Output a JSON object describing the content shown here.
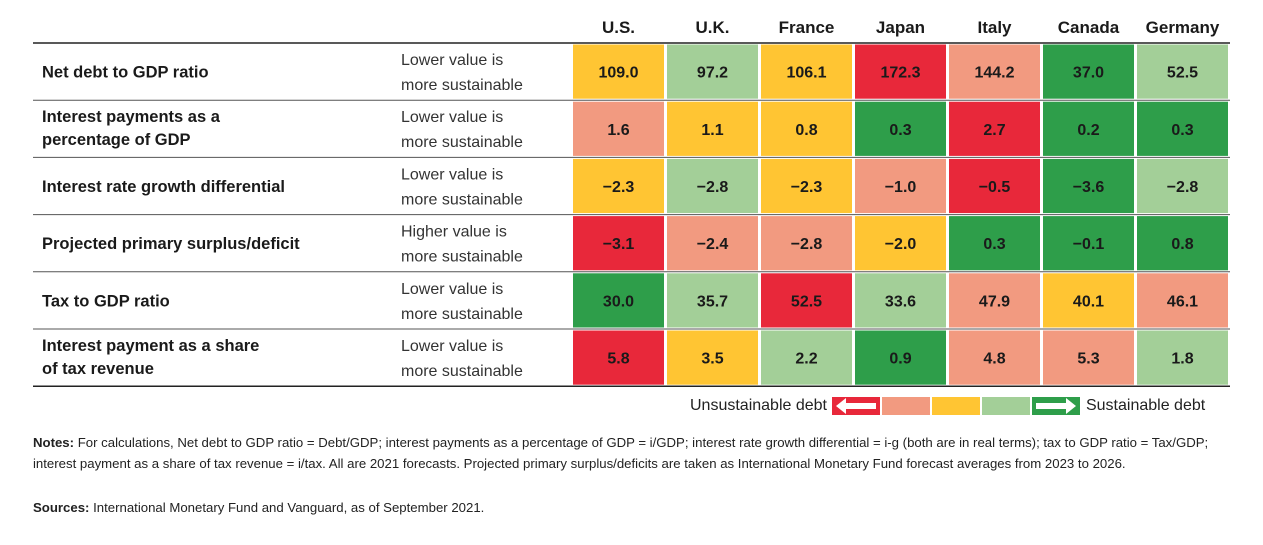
{
  "chart_data": {
    "type": "heatmap",
    "columns": [
      "U.S.",
      "U.K.",
      "France",
      "Japan",
      "Italy",
      "Canada",
      "Germany"
    ],
    "rows": [
      {
        "metric": "Net debt to GDP ratio",
        "guide": [
          "Lower value is",
          "more sustainable"
        ],
        "values": [
          109.0,
          97.2,
          106.1,
          172.3,
          144.2,
          37.0,
          52.5
        ],
        "labels": [
          "109.0",
          "97.2",
          "106.1",
          "172.3",
          "144.2",
          "37.0",
          "52.5"
        ],
        "levels": [
          3,
          2,
          3,
          5,
          4,
          1,
          2
        ]
      },
      {
        "metric": "Interest payments as a percentage of GDP",
        "metric_lines": [
          "Interest payments as a",
          "percentage of GDP"
        ],
        "guide": [
          "Lower value is",
          "more sustainable"
        ],
        "values": [
          1.6,
          1.1,
          0.8,
          0.3,
          2.7,
          0.2,
          0.3
        ],
        "labels": [
          "1.6",
          "1.1",
          "0.8",
          "0.3",
          "2.7",
          "0.2",
          "0.3"
        ],
        "levels": [
          4,
          3,
          3,
          1,
          5,
          1,
          1
        ]
      },
      {
        "metric": "Interest rate growth differential",
        "guide": [
          "Lower value is",
          "more sustainable"
        ],
        "values": [
          -2.3,
          -2.8,
          -2.3,
          -1.0,
          -0.5,
          -3.6,
          -2.8
        ],
        "labels": [
          "−2.3",
          "−2.8",
          "−2.3",
          "−1.0",
          "−0.5",
          "−3.6",
          "−2.8"
        ],
        "levels": [
          3,
          2,
          3,
          4,
          5,
          1,
          2
        ]
      },
      {
        "metric": "Projected primary surplus/deficit",
        "guide": [
          "Higher value is",
          "more sustainable"
        ],
        "values": [
          -3.1,
          -2.4,
          -2.8,
          -2.0,
          0.3,
          -0.1,
          0.8
        ],
        "labels": [
          "−3.1",
          "−2.4",
          "−2.8",
          "−2.0",
          "0.3",
          "−0.1",
          "0.8"
        ],
        "levels": [
          5,
          4,
          4,
          3,
          1,
          1,
          1
        ]
      },
      {
        "metric": "Tax to GDP ratio",
        "guide": [
          "Lower value is",
          "more sustainable"
        ],
        "values": [
          30.0,
          35.7,
          52.5,
          33.6,
          47.9,
          40.1,
          46.1
        ],
        "labels": [
          "30.0",
          "35.7",
          "52.5",
          "33.6",
          "47.9",
          "40.1",
          "46.1"
        ],
        "levels": [
          1,
          2,
          5,
          2,
          4,
          3,
          4
        ]
      },
      {
        "metric": "Interest payment as a share of tax revenue",
        "metric_lines": [
          "Interest payment as a share",
          "of tax revenue"
        ],
        "guide": [
          "Lower value is",
          "more sustainable"
        ],
        "values": [
          5.8,
          3.5,
          2.2,
          0.9,
          4.8,
          5.3,
          1.8
        ],
        "labels": [
          "5.8",
          "3.5",
          "2.2",
          "0.9",
          "4.8",
          "5.3",
          "1.8"
        ],
        "levels": [
          5,
          3,
          2,
          1,
          4,
          4,
          2
        ]
      }
    ],
    "color_scale": {
      "1": "#2e9e4a",
      "2": "#a3cf98",
      "3": "#ffc533",
      "4": "#f29a80",
      "5": "#e8283a"
    },
    "legend": {
      "left_label": "Unsustainable debt",
      "right_label": "Sustainable debt",
      "segments": [
        "#e8283a",
        "#f29a80",
        "#ffc533",
        "#a3cf98",
        "#2e9e4a"
      ],
      "placement": "bottom-right"
    }
  },
  "notes": {
    "label": "Notes:",
    "text": " For calculations, Net debt to GDP ratio = Debt/GDP; interest payments as a percentage of GDP = i/GDP; interest rate growth differential = i-g (both are in real terms); tax to GDP ratio = Tax/GDP; interest payment as a share of tax revenue = i/tax. All are 2021 forecasts. Projected primary surplus/deficits are taken as International Monetary Fund forecast averages from 2023 to 2026."
  },
  "sources": {
    "label": "Sources:",
    "text": " International Monetary Fund and Vanguard, as of September 2021."
  }
}
